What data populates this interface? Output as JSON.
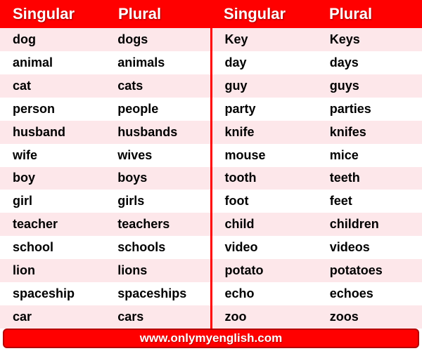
{
  "colors": {
    "header_bg": "#ff0000",
    "header_text": "#ffffff",
    "stripe_odd": "#fde7ea",
    "stripe_even": "#ffffff",
    "cell_text": "#000000",
    "divider": "#ff0000",
    "footer_bg": "#ff0000",
    "footer_border": "#b50000"
  },
  "typography": {
    "header_fontsize": 22,
    "cell_fontsize": 18,
    "footer_fontsize": 17,
    "font_family": "Arial"
  },
  "headers": [
    "Singular",
    "Plural",
    "Singular",
    "Plural"
  ],
  "left": [
    {
      "s": "dog",
      "p": "dogs"
    },
    {
      "s": "animal",
      "p": "animals"
    },
    {
      "s": "cat",
      "p": "cats"
    },
    {
      "s": "person",
      "p": "people"
    },
    {
      "s": "husband",
      "p": "husbands"
    },
    {
      "s": "wife",
      "p": "wives"
    },
    {
      "s": "boy",
      "p": "boys"
    },
    {
      "s": "girl",
      "p": "girls"
    },
    {
      "s": "teacher",
      "p": "teachers"
    },
    {
      "s": "school",
      "p": "schools"
    },
    {
      "s": "lion",
      "p": "lions"
    },
    {
      "s": "spaceship",
      "p": "spaceships"
    },
    {
      "s": "car",
      "p": "cars"
    }
  ],
  "right": [
    {
      "s": "Key",
      "p": "Keys"
    },
    {
      "s": "day",
      "p": "days"
    },
    {
      "s": "guy",
      "p": "guys"
    },
    {
      "s": "party",
      "p": "parties"
    },
    {
      "s": "knife",
      "p": "knifes"
    },
    {
      "s": "mouse",
      "p": "mice"
    },
    {
      "s": "tooth",
      "p": "teeth"
    },
    {
      "s": "foot",
      "p": "feet"
    },
    {
      "s": "child",
      "p": "children"
    },
    {
      "s": "video",
      "p": "videos"
    },
    {
      "s": "potato",
      "p": "potatoes"
    },
    {
      "s": "echo",
      "p": "echoes"
    },
    {
      "s": "zoo",
      "p": "zoos"
    }
  ],
  "footer": "www.onlymyenglish.com"
}
